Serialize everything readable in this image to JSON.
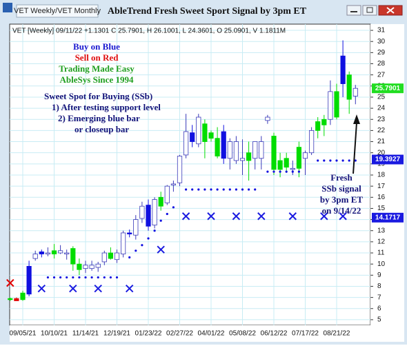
{
  "window": {
    "title": "AbleTrend Fresh Sweet Sport Signal by 3pm ET",
    "tab": "VET Weekly/VET Monthly"
  },
  "chart_data": {
    "type": "candlestick",
    "header": "VET [Weekly] 09/11/22 +1.1301 C 25.7901, H 26.1001, L 24.3601, O 25.0901, V 1.1811M",
    "annotations": [
      "Buy on Blue",
      "Sell on Red",
      "Trading Made Easy",
      "AbleSys Since 1994",
      "Sweet Spot for Buying (SSb)",
      "1) After testing support level",
      "2) Emerging blue bar",
      "or closeup bar",
      "Fresh",
      "SSb signal",
      "by 3pm ET",
      "on 9/14/22"
    ],
    "annotation_colors": [
      "#1a1ad0",
      "#e01010",
      "#1f9f1f",
      "#1f9f1f",
      "#14147a",
      "#14147a",
      "#14147a",
      "#14147a",
      "#14147a",
      "#14147a",
      "#14147a",
      "#14147a"
    ],
    "categories": [
      null,
      null,
      "09/05/21",
      null,
      null,
      null,
      null,
      "10/10/21",
      null,
      null,
      null,
      null,
      "11/14/21",
      null,
      null,
      null,
      null,
      "12/19/21",
      null,
      null,
      null,
      null,
      "01/23/22",
      null,
      null,
      null,
      null,
      "02/27/22",
      null,
      null,
      null,
      null,
      "04/01/22",
      null,
      null,
      null,
      null,
      "05/08/22",
      null,
      null,
      null,
      null,
      "06/12/22",
      null,
      null,
      null,
      null,
      "07/17/22",
      null,
      null,
      null,
      null,
      "08/21/22",
      null,
      null,
      null
    ],
    "open": [
      6.8,
      6.9,
      6.8,
      7.3,
      10.5,
      10.9,
      11.0,
      10.9,
      11.2,
      11.0,
      11.4,
      10.0,
      9.6,
      9.9,
      9.7,
      10.2,
      11.0,
      10.4,
      10.9,
      12.8,
      12.6,
      14.1,
      15.3,
      13.5,
      16.0,
      15.5,
      17.1,
      17.3,
      19.8,
      21.8,
      20.8,
      22.6,
      21.8,
      21.3,
      21.9,
      19.5,
      21.0,
      19.5,
      19.3,
      19.5,
      21.0,
      22.9,
      21.5,
      18.5,
      19.5,
      18.6,
      20.5,
      19.5,
      20.0,
      22.0,
      22.5,
      23.0,
      25.5,
      28.7,
      27.0,
      25.0901
    ],
    "high": [
      7.0,
      7.0,
      7.6,
      10.3,
      11.2,
      11.3,
      11.5,
      11.8,
      11.7,
      11.3,
      11.6,
      10.5,
      10.3,
      10.3,
      10.2,
      11.2,
      11.5,
      11.3,
      13.0,
      13.1,
      14.4,
      15.6,
      15.8,
      16.0,
      16.5,
      17.1,
      17.5,
      19.8,
      23.5,
      22.5,
      23.5,
      23.0,
      22.0,
      22.3,
      22.5,
      21.3,
      21.5,
      21.2,
      21.0,
      21.0,
      21.5,
      23.4,
      21.8,
      20.0,
      20.0,
      19.3,
      21.0,
      20.2,
      22.3,
      23.2,
      23.4,
      26.5,
      26.2,
      30.1,
      27.3,
      26.1001
    ],
    "low": [
      6.7,
      6.7,
      6.7,
      7.1,
      10.3,
      10.6,
      10.7,
      10.5,
      10.9,
      10.4,
      9.4,
      9.0,
      9.2,
      9.4,
      9.3,
      9.9,
      10.4,
      10.1,
      10.6,
      12.4,
      12.2,
      13.7,
      13.0,
      13.2,
      14.8,
      15.3,
      16.5,
      17.0,
      19.5,
      20.5,
      20.5,
      19.5,
      21.0,
      19.5,
      19.0,
      18.5,
      19.0,
      18.0,
      17.5,
      18.5,
      18.5,
      22.6,
      18.0,
      17.8,
      18.2,
      18.0,
      17.8,
      18.0,
      19.8,
      21.3,
      21.5,
      22.5,
      23.0,
      25.0,
      23.5,
      24.3601
    ],
    "close": [
      6.9,
      6.7,
      7.4,
      9.8,
      10.9,
      11.1,
      10.9,
      11.2,
      11.0,
      10.9,
      10.0,
      9.5,
      9.9,
      9.6,
      10.0,
      11.0,
      10.5,
      11.0,
      12.8,
      12.7,
      14.0,
      15.2,
      13.4,
      15.8,
      15.2,
      17.0,
      17.2,
      19.7,
      21.9,
      21.0,
      23.2,
      21.0,
      21.3,
      19.7,
      19.5,
      21.0,
      19.3,
      19.3,
      20.0,
      21.0,
      19.5,
      23.2,
      18.5,
      19.3,
      18.7,
      18.5,
      18.6,
      20.0,
      22.0,
      22.8,
      23.0,
      25.5,
      23.2,
      26.2,
      24.8,
      25.7901
    ],
    "candle_colors": [
      "#00dd00",
      "#e00000",
      "#00dd00",
      "#1010e0",
      "#ffffff",
      "#1010e0",
      "#ffffff",
      "#00dd00",
      "#ffffff",
      "#ffffff",
      "#00dd00",
      "#00dd00",
      "#ffffff",
      "#ffffff",
      "#ffffff",
      "#ffffff",
      "#00dd00",
      "#ffffff",
      "#ffffff",
      "#1010e0",
      "#ffffff",
      "#ffffff",
      "#1010e0",
      "#ffffff",
      "#00dd00",
      "#ffffff",
      "#ffffff",
      "#ffffff",
      "#ffffff",
      "#1010e0",
      "#ffffff",
      "#00dd00",
      "#00dd00",
      "#00dd00",
      "#1010e0",
      "#ffffff",
      "#ffffff",
      "#ffffff",
      "#00dd00",
      "#ffffff",
      "#ffffff",
      "#ffffff",
      "#00dd00",
      "#00dd00",
      "#00dd00",
      "#ffffff",
      "#00dd00",
      "#ffffff",
      "#ffffff",
      "#00dd00",
      "#00dd00",
      "#ffffff",
      "#00dd00",
      "#1010e0",
      "#00dd00",
      "#ffffff"
    ],
    "candle_outline": "#3838b8",
    "support_dots": {
      "color": "#1010e0",
      "values": [
        null,
        null,
        null,
        null,
        null,
        null,
        8.8,
        8.8,
        8.8,
        8.8,
        8.8,
        8.8,
        8.8,
        8.8,
        8.8,
        8.8,
        8.8,
        8.8,
        null,
        10.6,
        11.2,
        11.7,
        12.3,
        13.0,
        13.9,
        14.5,
        15.1,
        null,
        16.7,
        16.7,
        16.7,
        16.7,
        16.7,
        16.7,
        16.7,
        16.7,
        16.7,
        16.7,
        16.7,
        16.7,
        null,
        18.3,
        18.3,
        18.3,
        18.3,
        18.3,
        18.3,
        null,
        null,
        19.3,
        19.3,
        19.3,
        19.3,
        19.3,
        19.3,
        19.3
      ]
    },
    "signals": {
      "values": [
        8.3,
        null,
        null,
        null,
        null,
        7.8,
        null,
        null,
        null,
        null,
        7.8,
        null,
        null,
        null,
        7.8,
        null,
        null,
        null,
        null,
        7.8,
        null,
        null,
        null,
        null,
        11.3,
        null,
        null,
        null,
        14.3,
        null,
        null,
        null,
        14.3,
        null,
        null,
        null,
        14.3,
        null,
        null,
        null,
        14.3,
        null,
        null,
        null,
        null,
        14.3,
        null,
        null,
        null,
        null,
        14.3,
        null,
        null,
        14.3,
        null,
        null
      ],
      "colors": [
        "#e00000",
        null,
        null,
        null,
        null,
        "#1a1ae0",
        null,
        null,
        null,
        null,
        "#1a1ae0",
        null,
        null,
        null,
        "#1a1ae0",
        null,
        null,
        null,
        null,
        "#1a1ae0",
        null,
        null,
        null,
        null,
        "#1a1ae0",
        null,
        null,
        null,
        "#1a1ae0",
        null,
        null,
        null,
        "#1a1ae0",
        null,
        null,
        null,
        "#1a1ae0",
        null,
        null,
        null,
        "#1a1ae0",
        null,
        null,
        null,
        null,
        "#1a1ae0",
        null,
        null,
        null,
        null,
        "#1a1ae0",
        null,
        null,
        "#1a1ae0",
        null,
        null
      ]
    },
    "price_labels": [
      {
        "value": 25.7901,
        "color": "#22dd22"
      },
      {
        "value": 19.3927,
        "color": "#1a1ae0"
      },
      {
        "value": 14.1717,
        "color": "#1a1ae0"
      }
    ],
    "ylim": [
      4.5,
      31.56
    ],
    "yticks": [
      5,
      6,
      7,
      8,
      9,
      10,
      11,
      12,
      13,
      14,
      15,
      16,
      17,
      18,
      19,
      20,
      21,
      22,
      23,
      24,
      25,
      26,
      27,
      28,
      29,
      30,
      31
    ],
    "grid": true,
    "grid_color": "#c8ecf4"
  }
}
